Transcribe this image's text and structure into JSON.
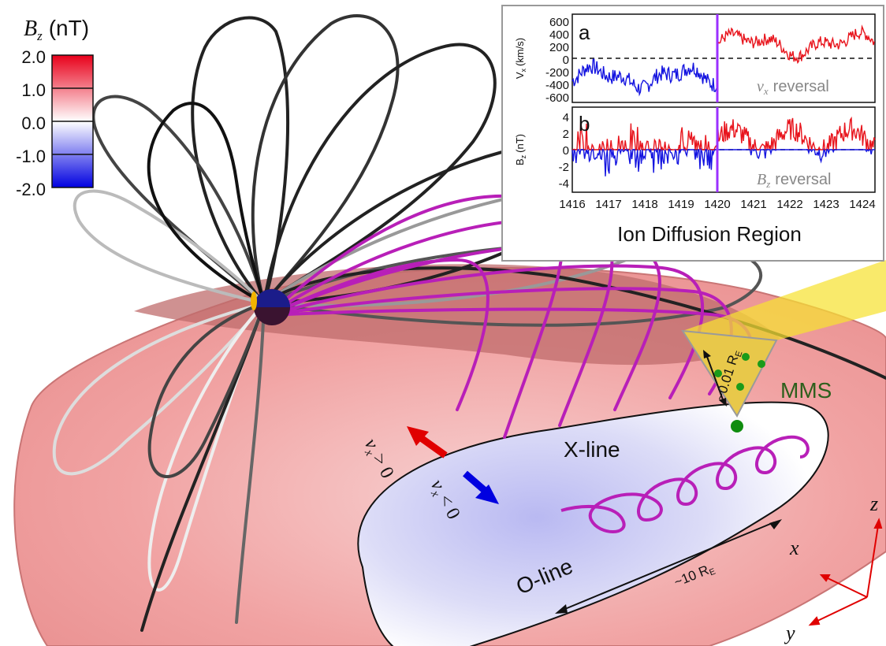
{
  "colorbar": {
    "title": "(nT)",
    "title_var": "B",
    "title_sub": "z",
    "ticks": [
      "2.0",
      "1.0",
      "0.0",
      "-1.0",
      "-2.0"
    ],
    "colors": {
      "max": "#e8001a",
      "mid": "#ffffff",
      "min": "#0000e0"
    }
  },
  "labels": {
    "x_line": "X-line",
    "o_line": "O-line",
    "mms": "MMS",
    "spacecraft_sep": "~0.01 R",
    "spacecraft_sep_sub": "E",
    "oline_length": "~10 R",
    "oline_length_sub": "E",
    "vx_pos": "v",
    "vx_pos_rest": "> 0",
    "vx_neg": "v",
    "vx_neg_rest": "< 0",
    "axis_x": "x",
    "axis_y": "y",
    "axis_z": "z"
  },
  "inset": {
    "title": "Ion Diffusion Region",
    "panel_a": {
      "letter": "a",
      "ylabel": "V",
      "ylabel_sub": "x",
      "ylabel_unit": "(km/s)",
      "yticks": [
        "600",
        "400",
        "200",
        "0",
        "-200",
        "-400",
        "-600"
      ],
      "annotation": "reversal",
      "annotation_var": "v",
      "annotation_sub": "x"
    },
    "panel_b": {
      "letter": "b",
      "ylabel": "B",
      "ylabel_sub": "z",
      "ylabel_unit": "(nT)",
      "yticks": [
        "4",
        "2",
        "0",
        "-2",
        "-4"
      ],
      "annotation": "reversal",
      "annotation_var": "B",
      "annotation_sub": "z"
    },
    "xticks": [
      "1416",
      "1417",
      "1418",
      "1419",
      "1420",
      "1421",
      "1422",
      "1423",
      "1424"
    ],
    "colors": {
      "positive": "#e8141c",
      "negative": "#1414e0",
      "marker": "#9b30ff"
    }
  }
}
